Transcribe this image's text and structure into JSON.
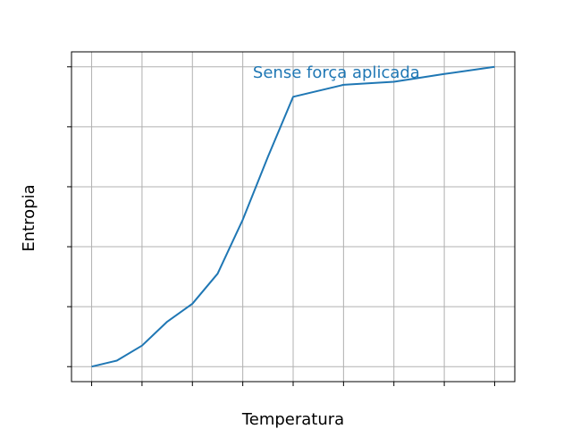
{
  "chart_data": {
    "type": "line",
    "title": "",
    "xlabel": "Temperatura",
    "ylabel": "Entropia",
    "xlim": [
      -0.4,
      8.4
    ],
    "ylim": [
      -0.25,
      5.25
    ],
    "grid": true,
    "x_ticks": [
      0,
      1,
      2,
      3,
      4,
      5,
      6,
      7,
      8
    ],
    "y_ticks": [
      0,
      1,
      2,
      3,
      4,
      5
    ],
    "tick_labels_shown": false,
    "series": [
      {
        "color": "#1f77b4",
        "x": [
          0,
          0.5,
          1,
          1.5,
          2,
          2.5,
          3,
          3.5,
          4,
          5,
          6,
          7,
          8
        ],
        "y": [
          0,
          0.1,
          0.35,
          0.75,
          1.05,
          1.55,
          2.45,
          3.5,
          4.5,
          4.7,
          4.75,
          4.88,
          5.0
        ]
      }
    ],
    "annotations": [
      {
        "text": "Sense força aplicada",
        "x": 3.2,
        "y": 4.82,
        "color": "#1f77b4"
      }
    ]
  }
}
